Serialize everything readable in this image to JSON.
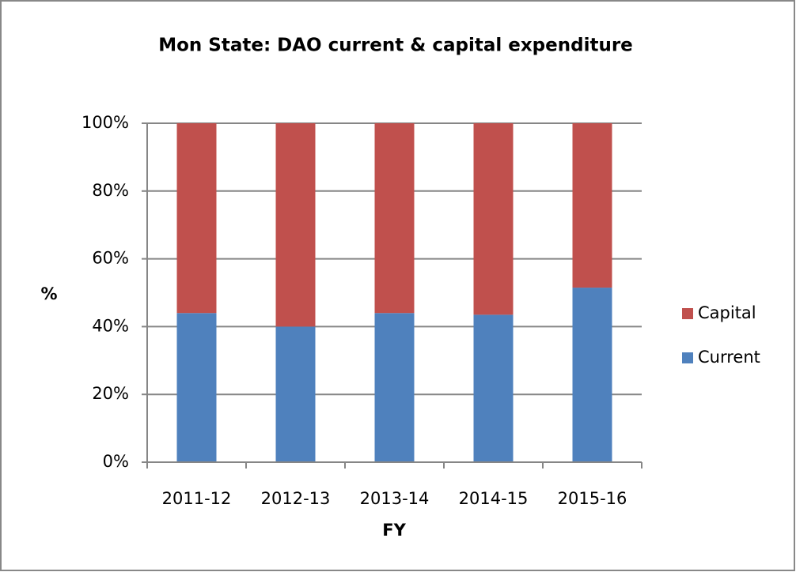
{
  "chart_data": {
    "type": "stacked_bar",
    "title": "Mon State: DAO current & capital expenditure",
    "x_label": "FY",
    "y_label": "%",
    "categories": [
      "2011-12",
      "2012-13",
      "2013-14",
      "2014-15",
      "2015-16"
    ],
    "series": [
      {
        "name": "Current",
        "color": "#4f81bd",
        "values": [
          44,
          40,
          44,
          43.5,
          51.5
        ]
      },
      {
        "name": "Capital",
        "color": "#c0504d",
        "values": [
          56,
          60,
          56,
          56.5,
          48.5
        ]
      }
    ],
    "ylim": [
      0,
      100
    ],
    "yticks": [
      {
        "value": 0,
        "label": "0%"
      },
      {
        "value": 20,
        "label": "20%"
      },
      {
        "value": 40,
        "label": "40%"
      },
      {
        "value": 60,
        "label": "60%"
      },
      {
        "value": 80,
        "label": "80%"
      },
      {
        "value": 100,
        "label": "100%"
      }
    ],
    "grid": true,
    "legend": "right"
  }
}
